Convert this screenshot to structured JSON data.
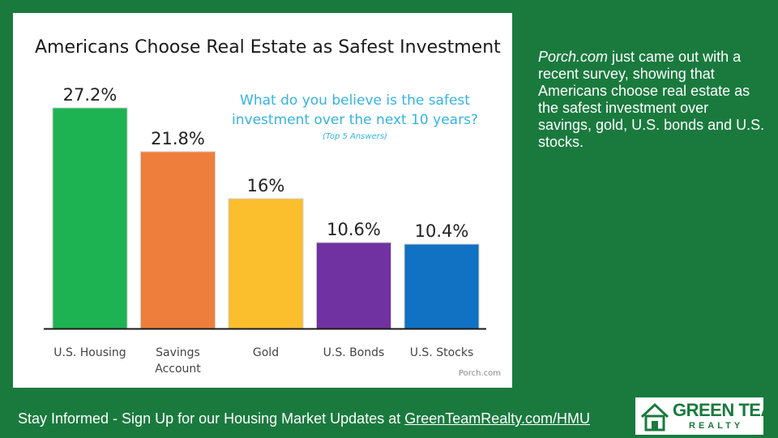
{
  "chart_data": {
    "type": "bar",
    "title": "Americans Choose Real Estate as Safest Investment",
    "subtitle": "What do you believe is the safest investment over the next 10 years?",
    "note": "(Top 5 Answers)",
    "source": "Porch.com",
    "categories": [
      [
        "U.S. Housing"
      ],
      [
        "Savings",
        "Account"
      ],
      [
        "Gold"
      ],
      [
        "U.S. Bonds"
      ],
      [
        "U.S. Stocks"
      ]
    ],
    "values": [
      27.2,
      21.8,
      16,
      10.6,
      10.4
    ],
    "value_labels": [
      "27.2%",
      "21.8%",
      "16%",
      "10.6%",
      "10.4%"
    ],
    "colors": [
      "#1db352",
      "#ee7e3b",
      "#fbbe2c",
      "#7032a0",
      "#1171c2"
    ],
    "ylim": [
      0,
      30
    ],
    "grid": false,
    "xlabel": "",
    "ylabel": ""
  },
  "sidebar": {
    "source_name": "Porch.com",
    "body": " just came out with a recent survey, showing that Americans choose real estate as the safest investment over savings, gold, U.S. bonds and U.S. stocks."
  },
  "footer": {
    "text": "Stay Informed - Sign Up for our Housing Market Updates at ",
    "link": "GreenTeamRealty.com/HMU"
  },
  "logo": {
    "line1": "GREEN TEAM",
    "line2": "REALTY",
    "color": "#1a7a3e"
  }
}
